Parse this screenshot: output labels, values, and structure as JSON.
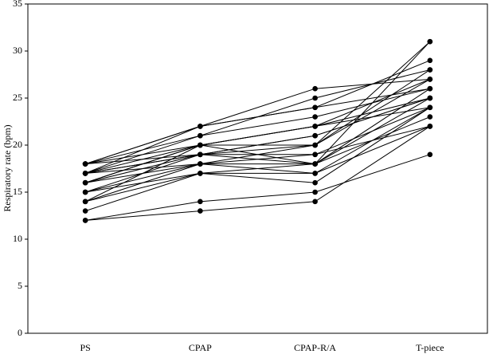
{
  "chart_data": {
    "type": "line",
    "ylabel": "Respiratory rate (bpm)",
    "categories": [
      "PS",
      "CPAP",
      "CPAP-R/A",
      "T-piece"
    ],
    "color": "#000000",
    "ylim": [
      0,
      35
    ],
    "yticks": [
      0,
      5,
      10,
      15,
      20,
      25,
      30,
      35
    ],
    "series": [
      {
        "values": [
          12,
          13,
          14,
          22
        ]
      },
      {
        "values": [
          12,
          14,
          15,
          19
        ]
      },
      {
        "values": [
          13,
          17,
          16,
          24
        ]
      },
      {
        "values": [
          14,
          17,
          17,
          22
        ]
      },
      {
        "values": [
          14,
          18,
          18,
          25
        ]
      },
      {
        "values": [
          15,
          17,
          18,
          26
        ]
      },
      {
        "values": [
          15,
          19,
          19,
          24
        ]
      },
      {
        "values": [
          16,
          18,
          20,
          28
        ]
      },
      {
        "values": [
          16,
          20,
          18,
          23
        ]
      },
      {
        "values": [
          16,
          19,
          21,
          25
        ]
      },
      {
        "values": [
          17,
          20,
          22,
          27
        ]
      },
      {
        "values": [
          17,
          19,
          18,
          31
        ]
      },
      {
        "values": [
          17,
          21,
          23,
          26
        ]
      },
      {
        "values": [
          17,
          18,
          17,
          24
        ]
      },
      {
        "values": [
          18,
          22,
          26,
          27
        ]
      },
      {
        "values": [
          18,
          22,
          24,
          29
        ]
      },
      {
        "values": [
          18,
          20,
          22,
          25
        ]
      },
      {
        "values": [
          18,
          21,
          25,
          28
        ]
      },
      {
        "values": [
          17,
          22,
          24,
          26
        ]
      },
      {
        "values": [
          16,
          20,
          20,
          31
        ]
      },
      {
        "values": [
          15,
          18,
          19,
          22
        ]
      },
      {
        "values": [
          18,
          19,
          21,
          25
        ]
      },
      {
        "values": [
          14,
          20,
          22,
          24
        ]
      },
      {
        "values": [
          17,
          19,
          20,
          27
        ]
      }
    ]
  }
}
